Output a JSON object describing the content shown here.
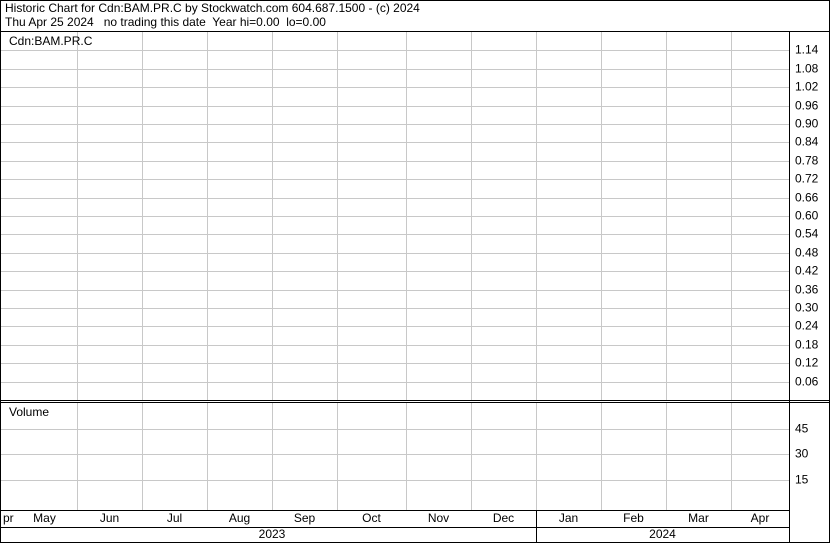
{
  "header": {
    "line1": "Historic Chart for Cdn:BAM.PR.C by Stockwatch.com 604.687.1500 - (c) 2024",
    "line2": "Thu Apr 25 2024   no trading this date  Year hi=0.00  lo=0.00"
  },
  "chart_data": [
    {
      "type": "line",
      "title": "Cdn:BAM.PR.C",
      "ylim": [
        0,
        1.2
      ],
      "yticks": [
        0.06,
        0.12,
        0.18,
        0.24,
        {
          "value": 0.3,
          "label": "0.30"
        },
        0.36,
        0.42,
        0.48,
        0.54,
        {
          "value": 0.6,
          "label": "0.60"
        },
        0.66,
        0.72,
        0.78,
        0.84,
        {
          "value": 0.9,
          "label": "0.90"
        },
        0.96,
        1.02,
        1.08,
        1.14
      ],
      "grid": true
    },
    {
      "type": "bar",
      "title": "Volume",
      "ylim": [
        0,
        60
      ],
      "yticks": [
        15,
        30,
        45
      ],
      "grid": true,
      "categories": [
        "pr",
        "May",
        "Jun",
        "Jul",
        "Aug",
        "Sep",
        "Oct",
        "Nov",
        "Dec",
        "Jan",
        "Feb",
        "Mar",
        "Apr"
      ],
      "years": [
        "2023",
        "2024"
      ]
    }
  ]
}
